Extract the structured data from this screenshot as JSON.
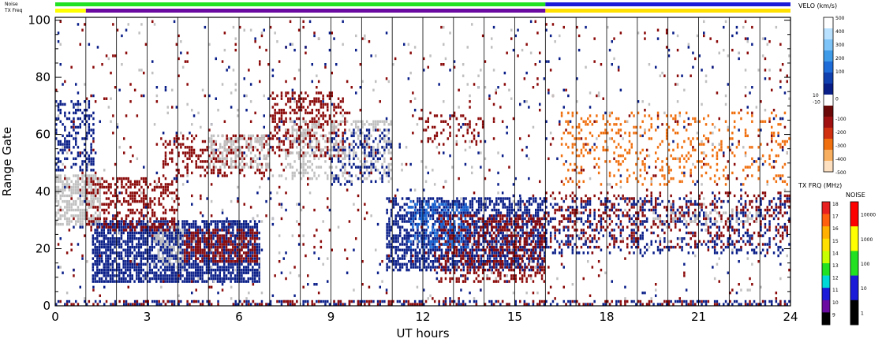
{
  "chart_data": {
    "type": "heatmap",
    "xlabel": "UT hours",
    "ylabel": "Range Gate",
    "xlim": [
      0,
      24
    ],
    "ylim": [
      0,
      101
    ],
    "x_ticks": [
      0,
      3,
      6,
      9,
      12,
      15,
      18,
      21,
      24
    ],
    "y_ticks": [
      0,
      20,
      40,
      60,
      80,
      100
    ],
    "hour_gridlines": [
      1,
      2,
      3,
      4,
      5,
      6,
      7,
      8,
      9,
      10,
      11,
      12,
      13,
      14,
      15,
      16,
      17,
      18,
      19,
      20,
      21,
      22,
      23
    ],
    "top_strips": {
      "noise_label": "Noise",
      "txfreq_label": "TX Freq",
      "noise_segments": [
        {
          "start": 0,
          "end": 16,
          "color": "#22e022"
        },
        {
          "start": 16,
          "end": 24,
          "color": "#1a1ad8"
        }
      ],
      "txfreq_segments": [
        {
          "start": 0,
          "end": 1,
          "color": "#ffff00"
        },
        {
          "start": 1,
          "end": 16,
          "color": "#6a0aa0"
        },
        {
          "start": 16,
          "end": 24,
          "color": "#ffe000"
        }
      ]
    },
    "velocity_scale": {
      "title": "VELO (km/s)",
      "labels": [
        "500",
        "400",
        "300",
        "200",
        "100",
        "10",
        "0",
        "-10",
        "-100",
        "-200",
        "-300",
        "-400",
        "-500"
      ],
      "colors": [
        "#ffffff",
        "#b8e0ff",
        "#7ec4f8",
        "#3f9be8",
        "#1e6cd8",
        "#1040b0",
        "#0a1e88",
        "#ffffff",
        "#6a0808",
        "#a01010",
        "#d03010",
        "#f07010",
        "#f8b060",
        "#fde0c0"
      ]
    },
    "txfreq_scale": {
      "title": "TX FRQ (MHz)",
      "labels": [
        "18",
        "17",
        "16",
        "15",
        "14",
        "13",
        "12",
        "11",
        "10",
        "9"
      ],
      "colors": [
        "#e82020",
        "#ff6010",
        "#ffb000",
        "#ffe000",
        "#c8ff00",
        "#22e022",
        "#00d8d8",
        "#1a1ad8",
        "#6a0aa0",
        "#000000"
      ]
    },
    "noise_scale": {
      "title": "NOISE",
      "labels": [
        "10000",
        "1000",
        "100",
        "10",
        "1"
      ],
      "colors": [
        "#ff0000",
        "#ffff00",
        "#22e022",
        "#1a1ad8",
        "#000000"
      ]
    },
    "echo_regions": [
      {
        "x0": 1.2,
        "x1": 6.7,
        "y0": 8,
        "y1": 30,
        "color": "#0a1e88",
        "density": 0.75
      },
      {
        "x0": 4.2,
        "x1": 6.6,
        "y0": 15,
        "y1": 27,
        "color": "#8b0a0a",
        "density": 0.55
      },
      {
        "x0": 3.2,
        "x1": 4.2,
        "y0": 14,
        "y1": 28,
        "color": "#c0c0c0",
        "density": 0.35
      },
      {
        "x0": 0,
        "x1": 1.5,
        "y0": 28,
        "y1": 46,
        "color": "#c0c0c0",
        "density": 0.7
      },
      {
        "x0": 1,
        "x1": 4,
        "y0": 26,
        "y1": 45,
        "color": "#8b0a0a",
        "density": 0.4
      },
      {
        "x0": 0,
        "x1": 1.3,
        "y0": 47,
        "y1": 72,
        "color": "#0a1e88",
        "density": 0.35
      },
      {
        "x0": 3.5,
        "x1": 7,
        "y0": 45,
        "y1": 60,
        "color": "#8b0a0a",
        "density": 0.3
      },
      {
        "x0": 5,
        "x1": 7,
        "y0": 48,
        "y1": 60,
        "color": "#c0c0c0",
        "density": 0.4
      },
      {
        "x0": 7,
        "x1": 9.5,
        "y0": 52,
        "y1": 75,
        "color": "#8b0a0a",
        "density": 0.35
      },
      {
        "x0": 7.5,
        "x1": 11,
        "y0": 44,
        "y1": 65,
        "color": "#c0c0c0",
        "density": 0.3
      },
      {
        "x0": 9,
        "x1": 11,
        "y0": 42,
        "y1": 62,
        "color": "#0a1e88",
        "density": 0.25
      },
      {
        "x0": 10.8,
        "x1": 16,
        "y0": 12,
        "y1": 38,
        "color": "#0a1e88",
        "density": 0.6
      },
      {
        "x0": 12.5,
        "x1": 16,
        "y0": 8,
        "y1": 32,
        "color": "#8b0a0a",
        "density": 0.4
      },
      {
        "x0": 11.5,
        "x1": 13.5,
        "y0": 20,
        "y1": 37,
        "color": "#1e6cd8",
        "density": 0.3
      },
      {
        "x0": 12,
        "x1": 14,
        "y0": 56,
        "y1": 68,
        "color": "#8b0a0a",
        "density": 0.2
      },
      {
        "x0": 16,
        "x1": 24,
        "y0": 18,
        "y1": 38,
        "color": "#0a1e88",
        "density": 0.22
      },
      {
        "x0": 16,
        "x1": 24,
        "y0": 20,
        "y1": 40,
        "color": "#8b0a0a",
        "density": 0.18
      },
      {
        "x0": 16.5,
        "x1": 24,
        "y0": 42,
        "y1": 68,
        "color": "#f07010",
        "density": 0.15
      },
      {
        "x0": 19.5,
        "x1": 23,
        "y0": 29,
        "y1": 33,
        "color": "#c0c0c0",
        "density": 0.3
      },
      {
        "x0": 0,
        "x1": 24,
        "y0": 0,
        "y1": 2,
        "color": "#0a1e88",
        "density": 0.35
      },
      {
        "x0": 0,
        "x1": 24,
        "y0": 0,
        "y1": 2,
        "color": "#8b0a0a",
        "density": 0.25
      },
      {
        "x0": 0,
        "x1": 24,
        "y0": 2,
        "y1": 100,
        "color": "#8b0a0a",
        "density": 0.015
      },
      {
        "x0": 0,
        "x1": 24,
        "y0": 2,
        "y1": 100,
        "color": "#0a1e88",
        "density": 0.012
      },
      {
        "x0": 0,
        "x1": 24,
        "y0": 2,
        "y1": 100,
        "color": "#c0c0c0",
        "density": 0.012
      }
    ]
  }
}
